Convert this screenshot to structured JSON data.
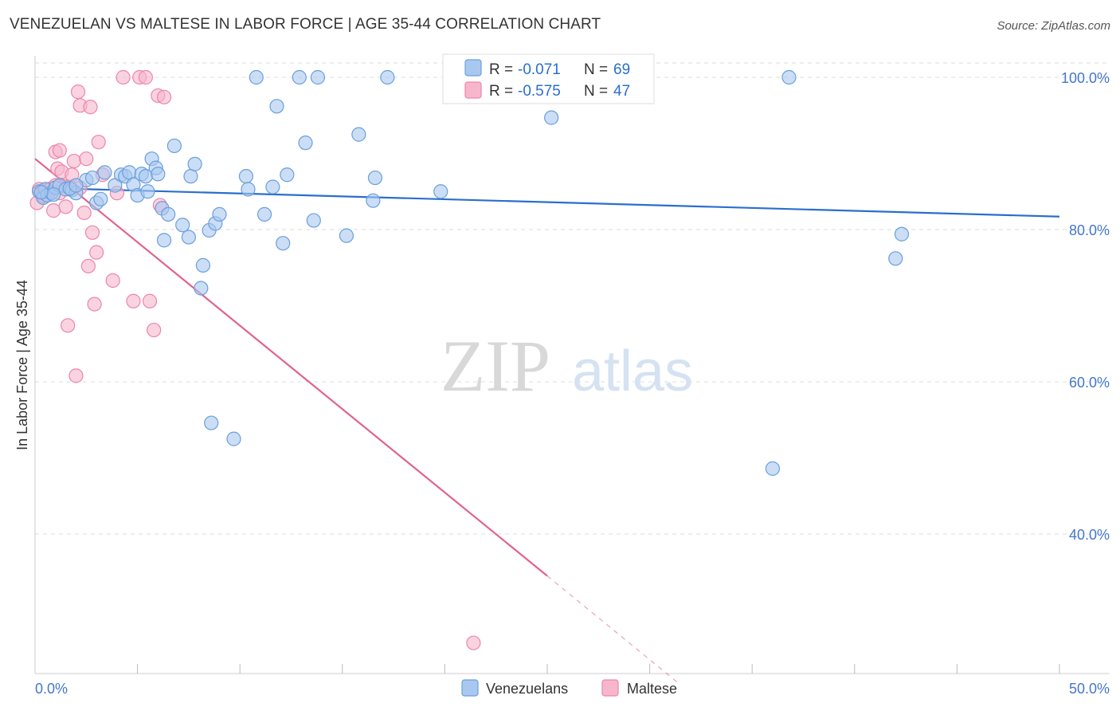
{
  "title": "VENEZUELAN VS MALTESE IN LABOR FORCE | AGE 35-44 CORRELATION CHART",
  "source": "Source: ZipAtlas.com",
  "watermark": {
    "zip": "ZIP",
    "atlas": "atlas"
  },
  "colors": {
    "venezuelan_fill": "#a9c8f0",
    "venezuelan_stroke": "#6a9fdc",
    "venezuelan_line": "#2a6fcc",
    "maltese_fill": "#f7b6cc",
    "maltese_stroke": "#ec86a8",
    "maltese_line": "#e0638f",
    "axis_text": "#4477cc",
    "grid": "#dddddd"
  },
  "legend": {
    "rows": [
      {
        "r_label": "R =",
        "r_value": "-0.071",
        "n_label": "N =",
        "n_value": "69"
      },
      {
        "r_label": "R =",
        "r_value": "-0.575",
        "n_label": "N =",
        "n_value": "47"
      }
    ]
  },
  "chart_data": {
    "type": "scatter",
    "title": "VENEZUELAN VS MALTESE IN LABOR FORCE | AGE 35-44 CORRELATION CHART",
    "xlabel": "",
    "ylabel": "In Labor Force | Age 35-44",
    "xlim": [
      0,
      50
    ],
    "ylim": [
      20,
      102
    ],
    "x_tick_labels": [
      "0.0%",
      "50.0%"
    ],
    "y_ticks": [
      100,
      80,
      60,
      40
    ],
    "y_tick_labels": [
      "100.0%",
      "80.0%",
      "60.0%",
      "40.0%"
    ],
    "grid": true,
    "legend_position": "bottom",
    "series": [
      {
        "name": "Venezuelans",
        "r": -0.071,
        "n": 69,
        "trend": {
          "x": [
            0,
            50
          ],
          "y": [
            85.5,
            81.7
          ]
        },
        "points": [
          [
            0.2,
            85.0
          ],
          [
            0.4,
            84.2
          ],
          [
            0.5,
            85.3
          ],
          [
            0.6,
            84.5
          ],
          [
            0.8,
            84.8
          ],
          [
            1.0,
            85.5
          ],
          [
            1.2,
            85.8
          ],
          [
            1.5,
            85.3
          ],
          [
            1.8,
            85.2
          ],
          [
            2.0,
            84.8
          ],
          [
            2.5,
            86.5
          ],
          [
            2.8,
            86.8
          ],
          [
            3.0,
            83.5
          ],
          [
            3.2,
            84.0
          ],
          [
            3.4,
            87.5
          ],
          [
            3.9,
            85.8
          ],
          [
            4.2,
            87.2
          ],
          [
            4.4,
            87.0
          ],
          [
            4.6,
            87.5
          ],
          [
            4.8,
            85.9
          ],
          [
            5.0,
            84.5
          ],
          [
            5.2,
            87.3
          ],
          [
            5.4,
            87.0
          ],
          [
            5.5,
            85.0
          ],
          [
            5.7,
            89.3
          ],
          [
            5.9,
            88.1
          ],
          [
            6.0,
            87.3
          ],
          [
            6.2,
            82.8
          ],
          [
            6.3,
            78.6
          ],
          [
            6.5,
            82.0
          ],
          [
            6.8,
            91.0
          ],
          [
            7.2,
            80.6
          ],
          [
            7.5,
            79.0
          ],
          [
            7.6,
            87.0
          ],
          [
            7.8,
            88.6
          ],
          [
            8.2,
            75.3
          ],
          [
            8.5,
            79.9
          ],
          [
            8.8,
            80.8
          ],
          [
            9.0,
            82.0
          ],
          [
            8.1,
            72.3
          ],
          [
            10.3,
            87.0
          ],
          [
            10.4,
            85.3
          ],
          [
            10.8,
            100.0
          ],
          [
            11.2,
            82.0
          ],
          [
            11.6,
            85.6
          ],
          [
            11.8,
            96.2
          ],
          [
            12.1,
            78.2
          ],
          [
            12.3,
            87.2
          ],
          [
            12.9,
            100.0
          ],
          [
            13.2,
            91.4
          ],
          [
            13.6,
            81.2
          ],
          [
            13.8,
            100.0
          ],
          [
            15.2,
            79.2
          ],
          [
            15.8,
            92.5
          ],
          [
            16.5,
            83.8
          ],
          [
            16.6,
            86.8
          ],
          [
            17.2,
            100.0
          ],
          [
            19.8,
            85.0
          ],
          [
            25.2,
            94.7
          ],
          [
            36.8,
            100.0
          ],
          [
            42.3,
            79.4
          ],
          [
            42.0,
            76.2
          ],
          [
            9.7,
            52.5
          ],
          [
            8.6,
            54.6
          ],
          [
            36.0,
            48.6
          ],
          [
            1.7,
            85.4
          ],
          [
            2.0,
            85.8
          ],
          [
            0.9,
            84.6
          ],
          [
            0.3,
            84.9
          ]
        ]
      },
      {
        "name": "Maltese",
        "r": -0.575,
        "n": 47,
        "trend": {
          "x": [
            0,
            25
          ],
          "y": [
            89.3,
            34.5
          ]
        },
        "trend_extension": {
          "x": [
            25,
            31.5
          ],
          "y": [
            34.5,
            20.2
          ]
        },
        "points": [
          [
            0.1,
            83.5
          ],
          [
            0.2,
            85.3
          ],
          [
            0.3,
            84.8
          ],
          [
            0.4,
            85.0
          ],
          [
            0.5,
            84.6
          ],
          [
            0.6,
            85.2
          ],
          [
            0.7,
            84.9
          ],
          [
            0.8,
            85.4
          ],
          [
            0.9,
            82.5
          ],
          [
            1.0,
            85.8
          ],
          [
            1.1,
            88.0
          ],
          [
            1.2,
            84.8
          ],
          [
            1.3,
            87.6
          ],
          [
            1.4,
            85.7
          ],
          [
            1.5,
            83.0
          ],
          [
            1.6,
            67.4
          ],
          [
            1.7,
            85.6
          ],
          [
            1.8,
            87.2
          ],
          [
            1.9,
            89.0
          ],
          [
            2.0,
            60.8
          ],
          [
            2.1,
            98.1
          ],
          [
            2.2,
            96.3
          ],
          [
            2.4,
            82.2
          ],
          [
            2.5,
            89.3
          ],
          [
            2.6,
            75.2
          ],
          [
            2.7,
            96.1
          ],
          [
            2.8,
            79.6
          ],
          [
            2.9,
            70.2
          ],
          [
            3.0,
            77.0
          ],
          [
            3.1,
            91.5
          ],
          [
            3.3,
            87.2
          ],
          [
            3.8,
            73.3
          ],
          [
            4.0,
            84.8
          ],
          [
            4.3,
            100.0
          ],
          [
            4.8,
            70.6
          ],
          [
            5.1,
            100.0
          ],
          [
            5.4,
            100.0
          ],
          [
            5.6,
            70.6
          ],
          [
            5.8,
            66.8
          ],
          [
            6.0,
            97.6
          ],
          [
            6.1,
            83.2
          ],
          [
            6.3,
            97.4
          ],
          [
            1.0,
            90.2
          ],
          [
            1.2,
            90.4
          ],
          [
            0.4,
            84.4
          ],
          [
            2.2,
            85.5
          ],
          [
            21.4,
            25.7
          ]
        ]
      }
    ]
  },
  "bottom_legend": {
    "items": [
      "Venezuelans",
      "Maltese"
    ]
  }
}
